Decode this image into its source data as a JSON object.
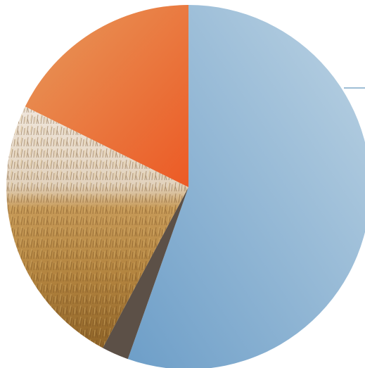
{
  "chart_data": {
    "type": "pie",
    "title": "",
    "legend": "none",
    "start_angle_deg": 0,
    "direction": "clockwise",
    "slices": [
      {
        "value": 55.4,
        "color": "#8fb7d5",
        "fill": "blue-gradient"
      },
      {
        "value": 2.4,
        "color": "#5c5047",
        "fill": "solid"
      },
      {
        "value": 24.5,
        "color": "#b8894a",
        "fill": "grass-photo"
      },
      {
        "value": 17.7,
        "color": "#ea6a33",
        "fill": "orange-gradient"
      }
    ],
    "leader_line": {
      "color": "#7fa8c9",
      "slice_index": 0
    }
  }
}
